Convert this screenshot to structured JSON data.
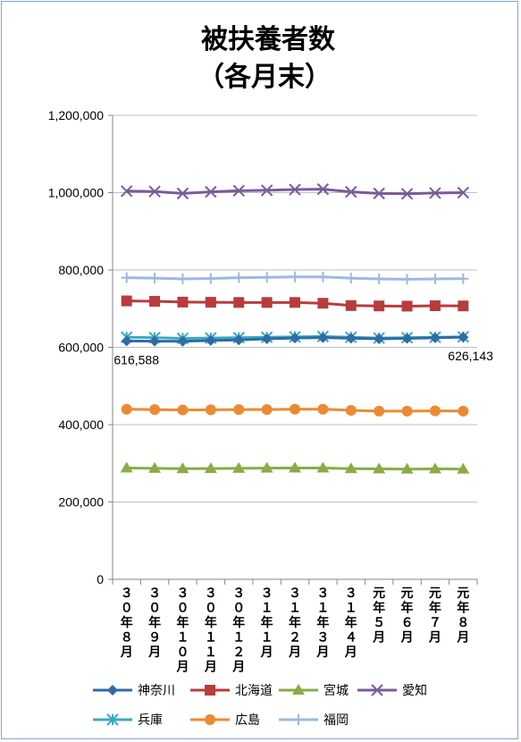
{
  "chart_data": {
    "type": "line",
    "title": "被扶養者数",
    "subtitle": "（各月末）",
    "categories": [
      "３０年８月",
      "３０年９月",
      "３０年１０月",
      "３０年１１月",
      "３０年１２月",
      "３１年１月",
      "３１年２月",
      "３１年３月",
      "３１年４月",
      "元年５月",
      "元年６月",
      "元年７月",
      "元年８月"
    ],
    "ylim": [
      0,
      1200000
    ],
    "yticks": [
      0,
      200000,
      400000,
      600000,
      800000,
      1000000,
      1200000
    ],
    "ytick_labels": [
      "0",
      "200,000",
      "400,000",
      "600,000",
      "800,000",
      "1,000,000",
      "1,200,000"
    ],
    "grid": true,
    "legend_position": "bottom",
    "series": [
      {
        "name": "神奈川",
        "color": "#2e6ca4",
        "marker": "diamond",
        "values": [
          616588,
          616000,
          615500,
          617500,
          619000,
          622000,
          624000,
          625000,
          623500,
          622000,
          623000,
          624500,
          626143
        ]
      },
      {
        "name": "北海道",
        "color": "#b83c3c",
        "marker": "square",
        "values": [
          720000,
          719000,
          717000,
          716500,
          716000,
          716000,
          716000,
          714000,
          708000,
          707000,
          706500,
          707500,
          707000
        ]
      },
      {
        "name": "宮城",
        "color": "#8aac46",
        "marker": "triangle",
        "values": [
          288000,
          287000,
          286000,
          286500,
          287000,
          287500,
          288000,
          288000,
          286000,
          285500,
          285000,
          285500,
          285000
        ]
      },
      {
        "name": "愛知",
        "color": "#7a5a9c",
        "marker": "x",
        "values": [
          1004000,
          1003000,
          998000,
          1002000,
          1005000,
          1006000,
          1008000,
          1009000,
          1002000,
          998000,
          997000,
          999000,
          1000000
        ]
      },
      {
        "name": "兵庫",
        "color": "#3aa8c2",
        "marker": "star",
        "values": [
          626000,
          625000,
          623000,
          624000,
          625000,
          626000,
          627000,
          628000,
          626000,
          624000,
          625000,
          626000,
          627000
        ]
      },
      {
        "name": "広島",
        "color": "#ec8a32",
        "marker": "circle",
        "values": [
          440000,
          439000,
          438000,
          438500,
          439000,
          439000,
          440000,
          440000,
          437000,
          435000,
          435000,
          435500,
          435000
        ]
      },
      {
        "name": "福岡",
        "color": "#9db9e0",
        "marker": "plus",
        "values": [
          780000,
          779000,
          777000,
          778000,
          780000,
          781000,
          782000,
          782000,
          779000,
          777000,
          776000,
          777000,
          777500
        ]
      }
    ],
    "data_labels": [
      {
        "series": "神奈川",
        "index": 0,
        "text": "616,588"
      },
      {
        "series": "神奈川",
        "index": 12,
        "text": "626,143"
      }
    ]
  }
}
